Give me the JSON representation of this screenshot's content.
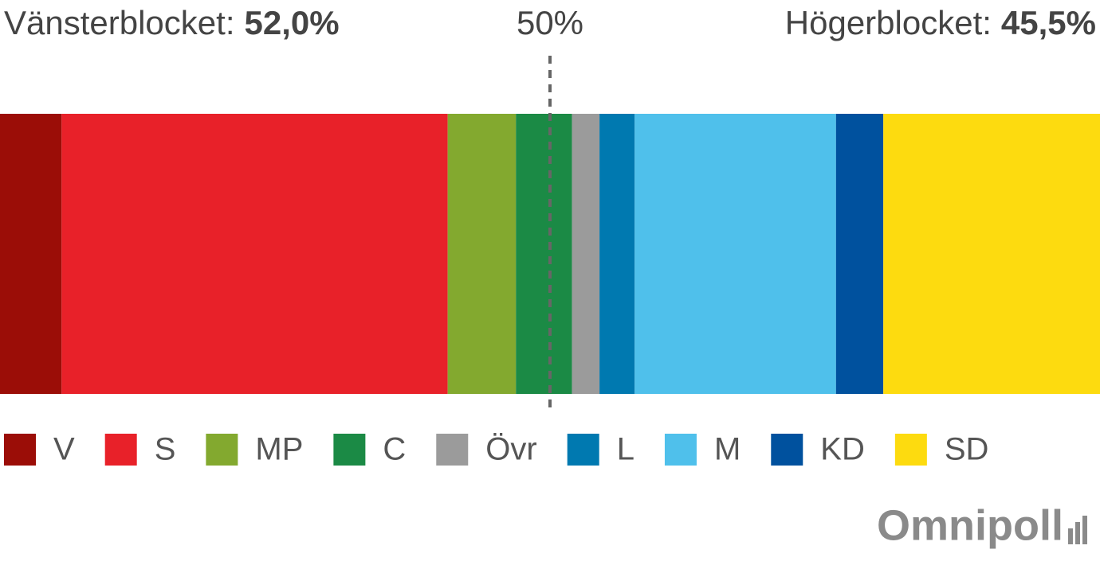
{
  "chart_data": {
    "type": "stacked-bar",
    "blocks": [
      {
        "name": "Vänsterblocket:",
        "value": 52.0,
        "value_label": "52,0%"
      },
      {
        "name": "Högerblocket:",
        "value": 45.5,
        "value_label": "45,5%"
      }
    ],
    "reference_line": {
      "value": 50,
      "label": "50%"
    },
    "xlim": [
      0,
      100
    ],
    "series": [
      {
        "name": "V",
        "color": "#9b0d07",
        "values": [
          5.6
        ]
      },
      {
        "name": "S",
        "color": "#e82129",
        "values": [
          35.1
        ]
      },
      {
        "name": "MP",
        "color": "#83a92f",
        "values": [
          6.2
        ]
      },
      {
        "name": "C",
        "color": "#1b8a45",
        "values": [
          5.1
        ]
      },
      {
        "name": "Övr",
        "color": "#9b9b9b",
        "values": [
          2.5
        ]
      },
      {
        "name": "L",
        "color": "#0079b0",
        "values": [
          3.2
        ]
      },
      {
        "name": "M",
        "color": "#4fc0eb",
        "values": [
          18.3
        ]
      },
      {
        "name": "KD",
        "color": "#00519e",
        "values": [
          4.3
        ]
      },
      {
        "name": "SD",
        "color": "#fddb0f",
        "values": [
          19.7
        ]
      }
    ],
    "source_logo": "Omnipoll"
  }
}
